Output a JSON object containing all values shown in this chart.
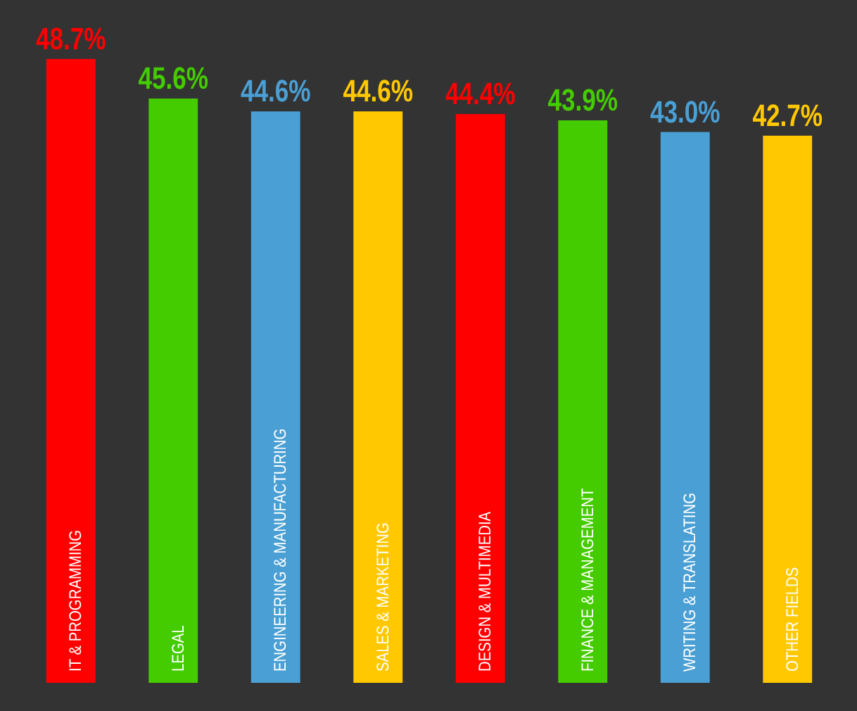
{
  "chart_data": {
    "type": "bar",
    "categories": [
      "IT & PROGRAMMING",
      "LEGAL",
      "ENGINEERING & MANUFACTURING",
      "SALES & MARKETING",
      "DESIGN & MULTIMEDIA",
      "FINANCE & MANAGEMENT",
      "WRITING & TRANSLATING",
      "OTHER FIELDS"
    ],
    "values": [
      48.7,
      45.6,
      44.6,
      44.6,
      44.4,
      43.9,
      43.0,
      42.7
    ],
    "colors": [
      "#ff0000",
      "#44cc00",
      "#4a9fd4",
      "#ffc800",
      "#ff0000",
      "#44cc00",
      "#4a9fd4",
      "#ffc800"
    ],
    "value_labels": [
      "48.7%",
      "45.6%",
      "44.6%",
      "44.6%",
      "44.4%",
      "43.9%",
      "43.0%",
      "42.7%"
    ],
    "legend": false
  }
}
